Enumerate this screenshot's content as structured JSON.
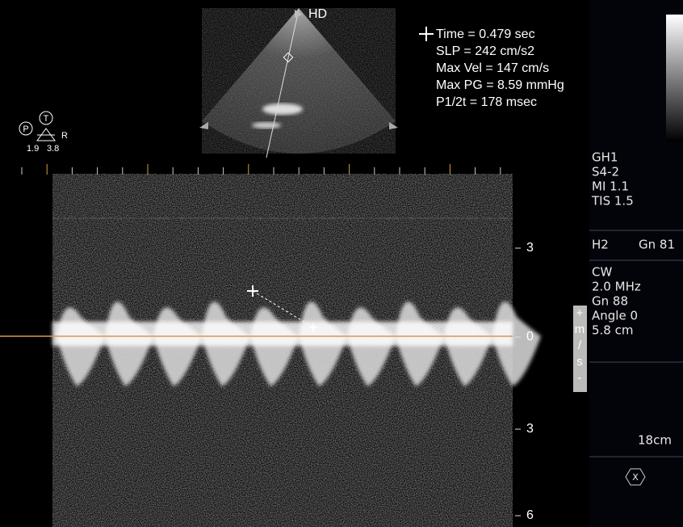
{
  "image_label": "HD",
  "measurements": [
    "Time = 0.479 sec",
    "SLP = 242 cm/s2",
    "Max Vel = 147 cm/s",
    "Max PG = 8.59 mmHg",
    "P1/2t = 178 msec"
  ],
  "probe_marker": {
    "left": "P",
    "top": "T",
    "right": "R",
    "values": [
      "1.9",
      "3.8"
    ]
  },
  "velocity_scale": {
    "labels": [
      "3",
      "0",
      "3",
      "6"
    ],
    "unit": [
      "+",
      "m",
      "/",
      "s",
      "-"
    ]
  },
  "side_panel": {
    "probe": [
      "GH1",
      "S4-2",
      "MI 1.1",
      "TIS 1.5"
    ],
    "gain_2d": [
      "H2",
      "Gn 81"
    ],
    "doppler": [
      "CW",
      "2.0 MHz",
      "Gn 88",
      "Angle 0",
      "5.8 cm"
    ],
    "depth": "18cm",
    "icon": "X"
  }
}
